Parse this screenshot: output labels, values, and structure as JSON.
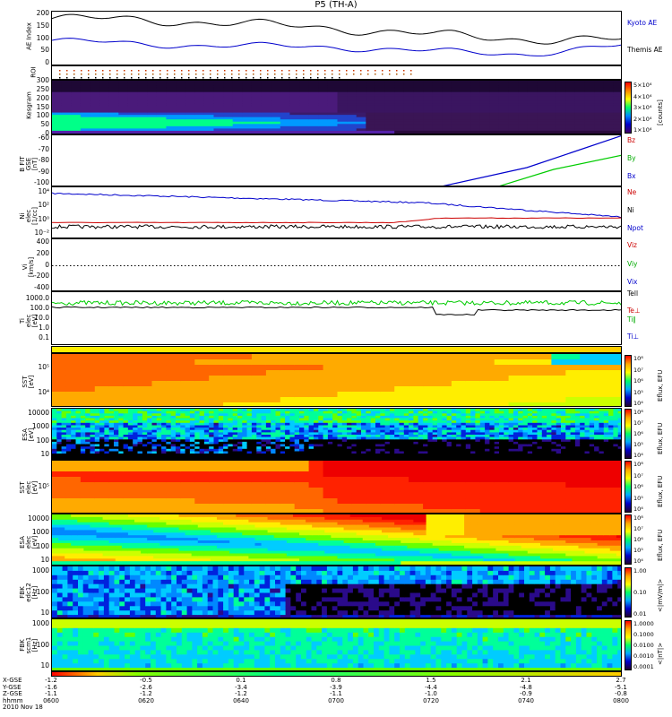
{
  "title": "P5 (TH-A)",
  "date_label": "2010 Nov 18",
  "colors": {
    "black": "#000000",
    "blue": "#0000cc",
    "red": "#cc0000",
    "green": "#00cc00"
  },
  "panels": {
    "ae": {
      "ylabel": "AE Index",
      "ticks": [
        "200",
        "150",
        "100",
        "50",
        "0"
      ],
      "legend": [
        "Kyoto AE",
        "Themis AE"
      ]
    },
    "roi": {
      "ylabel": "ROI"
    },
    "kesm": {
      "ylabel": "Kesgram",
      "ticks": [
        "300",
        "250",
        "200",
        "150",
        "100",
        "50",
        "0"
      ],
      "cbar_ticks": [
        "5×10⁴",
        "4×10⁴",
        "3×10⁴",
        "2×10⁴",
        "1×10⁴"
      ],
      "cbar_unit": "[counts]"
    },
    "bfit": {
      "ylabel": "B FIT\nGSE\n[nT]",
      "ticks": [
        "-60",
        "-70",
        "-80",
        "-90",
        "-100"
      ],
      "legend": [
        "Bz",
        "By",
        "Bx"
      ]
    },
    "ni": {
      "ylabel": "Ni\nelec\n[1/cc]",
      "ticks": [
        "10⁴",
        "10²",
        "10⁰",
        "10⁻²"
      ],
      "legend": [
        "Ne",
        "Ni",
        "Npot"
      ]
    },
    "vi": {
      "ylabel": "Vi\n[km/s]",
      "ticks": [
        "400",
        "200",
        "0",
        "-200",
        "-400"
      ],
      "legend": [
        "Viz",
        "Viy",
        "Vix"
      ]
    },
    "ti": {
      "ylabel": "Ti\nelec\n[eV]",
      "ticks": [
        "1000.0",
        "100.0",
        "10.0",
        "1.0",
        "0.1"
      ],
      "legend": [
        "Tell",
        "Te⊥",
        "Ti∥",
        "Ti⊥"
      ]
    },
    "sst1": {
      "ylabel": "SST\n[eV]",
      "ticks": [
        "10⁵",
        "10⁴"
      ],
      "cbar_ticks": [
        "10⁸",
        "10⁷",
        "10⁶",
        "10⁵",
        "10⁴"
      ],
      "cbar_unit": "Eflux, EFU"
    },
    "esa1": {
      "ylabel": "ESA\n[eV]",
      "ticks": [
        "10000",
        "1000",
        "100",
        "10"
      ],
      "cbar_ticks": [
        "10⁸",
        "10⁷",
        "10⁶",
        "10⁵",
        "10⁴"
      ],
      "cbar_unit": "Eflux, EFU"
    },
    "sst2": {
      "ylabel": "SST\nelec\n[eV]",
      "ticks": [
        "10⁵"
      ],
      "cbar_ticks": [
        "10⁸",
        "10⁷",
        "10⁶",
        "10⁵",
        "10⁴"
      ],
      "cbar_unit": "Eflux, EFU"
    },
    "esa2": {
      "ylabel": "ESA\nelec\n[eV]",
      "ticks": [
        "10000",
        "1000",
        "100",
        "10"
      ],
      "cbar_ticks": [
        "10⁸",
        "10⁷",
        "10⁶",
        "10⁵",
        "10⁴"
      ],
      "cbar_unit": "Eflux, EFU"
    },
    "fbk1": {
      "ylabel": "FBK\nedc12\n[Hz]",
      "ticks": [
        "1000",
        "100",
        "10"
      ],
      "cbar_ticks": [
        "1.00",
        "0.10",
        "0.01"
      ],
      "cbar_unit": "<|mV/m|>"
    },
    "fbk2": {
      "ylabel": "FBK\nscm1\n[Hz]",
      "ticks": [
        "1000",
        "100",
        "10"
      ],
      "cbar_ticks": [
        "1.0000",
        "0.1000",
        "0.0100",
        "0.0010",
        "0.0001"
      ],
      "cbar_unit": "<|nT|>"
    }
  },
  "xaxis": {
    "row_labels": [
      "X-GSE",
      "Y-GSE",
      "Z-GSE",
      "hhmm"
    ],
    "columns": [
      {
        "x": "-1.2",
        "y": "-1.6",
        "z": "-1.1",
        "t": "0600"
      },
      {
        "x": "-0.5",
        "y": "-2.6",
        "z": "-1.2",
        "t": "0620"
      },
      {
        "x": "0.1",
        "y": "-3.4",
        "z": "-1.2",
        "t": "0640"
      },
      {
        "x": "0.8",
        "y": "-3.9",
        "z": "-1.1",
        "t": "0700"
      },
      {
        "x": "1.5",
        "y": "-4.4",
        "z": "-1.0",
        "t": "0720"
      },
      {
        "x": "2.1",
        "y": "-4.8",
        "z": "-0.9",
        "t": "0740"
      },
      {
        "x": "2.7",
        "y": "-5.1",
        "z": "-0.8",
        "t": "0800"
      }
    ]
  },
  "chart_data": {
    "type": "line",
    "title": "P5 (TH-A)",
    "xlabel": "hhmm",
    "x": [
      "0600",
      "0620",
      "0640",
      "0700",
      "0720",
      "0740",
      "0800"
    ],
    "series": [
      {
        "name": "Kyoto AE",
        "values": [
          175,
          170,
          155,
          140,
          115,
          100,
          95
        ]
      },
      {
        "name": "Themis AE",
        "values": [
          95,
          80,
          75,
          70,
          55,
          45,
          75
        ]
      },
      {
        "name": "Bz",
        "values": [
          null,
          null,
          null,
          null,
          -98,
          -80,
          -62
        ]
      },
      {
        "name": "By",
        "values": [
          null,
          null,
          null,
          null,
          null,
          -95,
          -75
        ]
      }
    ],
    "ylim_ae": [
      0,
      200
    ]
  }
}
